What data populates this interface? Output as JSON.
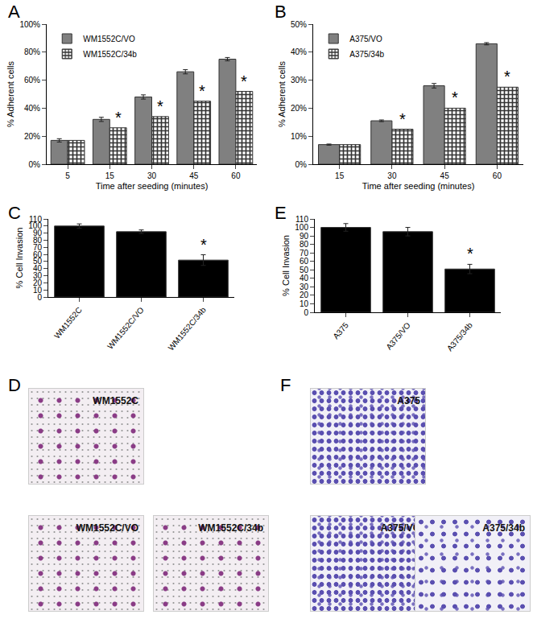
{
  "chart_data": [
    {
      "panel": "A",
      "type": "bar",
      "categories": [
        "5",
        "15",
        "30",
        "45",
        "60"
      ],
      "x_label": "Time after seeding (minutes)",
      "y_label": "% Adherent cells",
      "series": [
        {
          "name": "WM1552C/VO",
          "color": "#808080",
          "marker": "solid",
          "values": [
            17,
            32,
            48,
            66,
            75
          ],
          "errors": [
            1.2,
            1.5,
            1.5,
            1.5,
            1.2
          ]
        },
        {
          "name": "WM1552C/34b",
          "color": "#333333",
          "marker": "checkered",
          "values": [
            17,
            26,
            34,
            45,
            52
          ]
        }
      ],
      "ylim": [
        0,
        100
      ],
      "yticks": [
        {
          "value": 0,
          "label": "0%"
        },
        {
          "value": 20,
          "label": "20%"
        },
        {
          "value": 40,
          "label": "40%"
        },
        {
          "value": 60,
          "label": "60%"
        },
        {
          "value": 80,
          "label": "80%"
        },
        {
          "value": 100,
          "label": "100%"
        }
      ],
      "legend": "top left",
      "annotations": [
        {
          "category": "15",
          "series": "WM1552C/34b",
          "text": "*"
        },
        {
          "category": "30",
          "series": "WM1552C/34b",
          "text": "*"
        },
        {
          "category": "45",
          "series": "WM1552C/34b",
          "text": "*"
        },
        {
          "category": "60",
          "series": "WM1552C/34b",
          "text": "*"
        }
      ]
    },
    {
      "panel": "B",
      "type": "bar",
      "categories": [
        "15",
        "30",
        "45",
        "60"
      ],
      "x_label": "Time after seeding (minutes)",
      "y_label": "% Adherent cells",
      "series": [
        {
          "name": "A375/VO",
          "color": "#808080",
          "marker": "solid",
          "values": [
            7,
            15.5,
            28,
            43
          ],
          "errors": [
            0.2,
            0.3,
            0.8,
            0.4
          ]
        },
        {
          "name": "A375/34b",
          "color": "#333333",
          "marker": "checkered",
          "values": [
            7,
            12.5,
            20,
            27.5
          ]
        }
      ],
      "ylim": [
        0,
        50
      ],
      "yticks": [
        {
          "value": 0,
          "label": "0%"
        },
        {
          "value": 10,
          "label": "10%"
        },
        {
          "value": 20,
          "label": "20%"
        },
        {
          "value": 30,
          "label": "30%"
        },
        {
          "value": 40,
          "label": "40%"
        },
        {
          "value": 50,
          "label": "50%"
        }
      ],
      "legend": "top left",
      "annotations": [
        {
          "category": "30",
          "series": "A375/34b",
          "text": "*"
        },
        {
          "category": "45",
          "series": "A375/34b",
          "text": "*"
        },
        {
          "category": "60",
          "series": "A375/34b",
          "text": "*"
        }
      ]
    },
    {
      "panel": "C",
      "type": "bar",
      "categories": [
        "WM1552C",
        "WM1552C/VO",
        "WM1552C/34b"
      ],
      "y_label": "% Cell Invasion",
      "color": "#000000",
      "values": [
        100,
        92,
        52
      ],
      "errors": [
        3,
        2.5,
        7.5
      ],
      "ylim": [
        0,
        110
      ],
      "yticks": [
        0,
        10,
        20,
        30,
        40,
        50,
        60,
        70,
        80,
        90,
        100,
        110
      ],
      "annotations": [
        {
          "category": "WM1552C/34b",
          "text": "*"
        }
      ]
    },
    {
      "panel": "E",
      "type": "bar",
      "categories": [
        "A375",
        "A375/VO",
        "A375/34b"
      ],
      "y_label": "% Cell Invasion",
      "color": "#000000",
      "values": [
        100,
        95,
        51
      ],
      "errors": [
        4.5,
        5,
        5.5
      ],
      "ylim": [
        0,
        110
      ],
      "yticks": [
        0,
        10,
        20,
        30,
        40,
        50,
        60,
        70,
        80,
        90,
        100,
        110
      ],
      "annotations": [
        {
          "category": "A375/34b",
          "text": "*"
        }
      ]
    }
  ],
  "images": [
    {
      "panel": "D",
      "labels": [
        "WM1552C",
        "WM1552C/VO",
        "WM1552C/34b"
      ]
    },
    {
      "panel": "F",
      "labels": [
        "A375",
        "A375/VO",
        "A375/34b"
      ]
    }
  ]
}
